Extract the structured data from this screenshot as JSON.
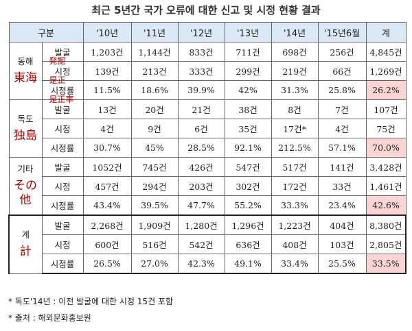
{
  "title": "최근 5년간 국가 오류에 대한 신고 및 시정 현황 결과",
  "headers": [
    "구분",
    "'10년",
    "'11년",
    "'12년",
    "'13년",
    "'14년",
    "'15년6월",
    "계"
  ],
  "groups": [
    {
      "name": "동해",
      "annotation": "東海",
      "rows": [
        {
          "label": "발굴",
          "note": "発掘",
          "values": [
            "1,203건",
            "1,144건",
            "833건",
            "711건",
            "698건",
            "256건",
            "4,845건"
          ]
        },
        {
          "label": "시정",
          "note": "是正",
          "values": [
            "139건",
            "213건",
            "333건",
            "299건",
            "219건",
            "66건",
            "1,269건"
          ]
        },
        {
          "label": "시정률",
          "note": "是正率",
          "values": [
            "11.5%",
            "18.6%",
            "39.9%",
            "42%",
            "31.3%",
            "25.8%",
            "26.2%"
          ]
        }
      ]
    },
    {
      "name": "독도",
      "annotation": "独島",
      "rows": [
        {
          "label": "발굴",
          "values": [
            "13건",
            "20건",
            "21건",
            "38건",
            "8건",
            "7건",
            "107건"
          ]
        },
        {
          "label": "시정",
          "values": [
            "4건",
            "9건",
            "6건",
            "35건",
            "17건*",
            "4건",
            "75건"
          ]
        },
        {
          "label": "시정률",
          "values": [
            "30.7%",
            "45%",
            "28.5%",
            "92.1%",
            "212.5%",
            "57.1%",
            "70.0%"
          ]
        }
      ]
    },
    {
      "name": "기타",
      "annotation": "その他",
      "rows": [
        {
          "label": "발굴",
          "values": [
            "1052건",
            "745건",
            "426건",
            "547건",
            "517건",
            "141건",
            "3,428건"
          ]
        },
        {
          "label": "시정",
          "values": [
            "457건",
            "294건",
            "203건",
            "302건",
            "172건",
            "33건",
            "1,461건"
          ]
        },
        {
          "label": "시정률",
          "values": [
            "43.4%",
            "39.5%",
            "47.7%",
            "55.2%",
            "33.3%",
            "23.4%",
            "42.6%"
          ]
        }
      ]
    },
    {
      "name": "계",
      "annotation": "計",
      "rows": [
        {
          "label": "발굴",
          "values": [
            "2,268건",
            "1,909건",
            "1,280건",
            "1,296건",
            "1,223건",
            "404건",
            "8,380건"
          ]
        },
        {
          "label": "시정",
          "values": [
            "600건",
            "516건",
            "542건",
            "636건",
            "408건",
            "103건",
            "2,805건"
          ]
        },
        {
          "label": "시정률",
          "values": [
            "26.5%",
            "27.0%",
            "42.3%",
            "49.1%",
            "33.4%",
            "25.5%",
            "33.5%"
          ]
        }
      ]
    }
  ],
  "notes": [
    "* 독도'14년 : 이전 발굴에 대한 시정 15건 포함",
    "* 출처 : 해외문화홍보원"
  ]
}
